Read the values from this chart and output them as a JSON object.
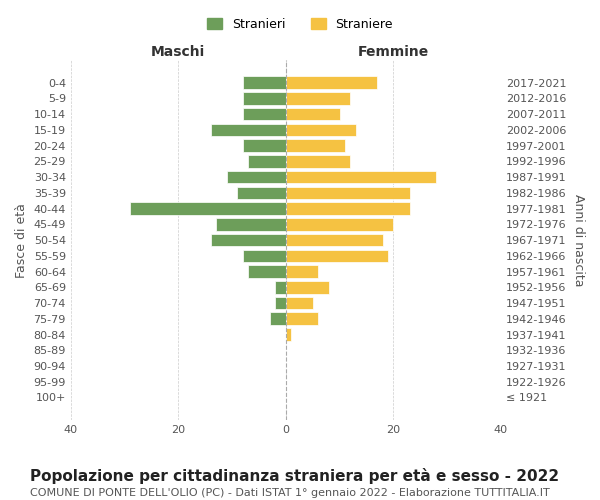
{
  "age_groups": [
    "100+",
    "95-99",
    "90-94",
    "85-89",
    "80-84",
    "75-79",
    "70-74",
    "65-69",
    "60-64",
    "55-59",
    "50-54",
    "45-49",
    "40-44",
    "35-39",
    "30-34",
    "25-29",
    "20-24",
    "15-19",
    "10-14",
    "5-9",
    "0-4"
  ],
  "birth_years": [
    "≤ 1921",
    "1922-1926",
    "1927-1931",
    "1932-1936",
    "1937-1941",
    "1942-1946",
    "1947-1951",
    "1952-1956",
    "1957-1961",
    "1962-1966",
    "1967-1971",
    "1972-1976",
    "1977-1981",
    "1982-1986",
    "1987-1991",
    "1992-1996",
    "1997-2001",
    "2002-2006",
    "2007-2011",
    "2012-2016",
    "2017-2021"
  ],
  "maschi": [
    0,
    0,
    0,
    0,
    0,
    3,
    2,
    2,
    7,
    8,
    14,
    13,
    29,
    9,
    11,
    7,
    8,
    14,
    8,
    8,
    8
  ],
  "femmine": [
    0,
    0,
    0,
    0,
    1,
    6,
    5,
    8,
    6,
    19,
    18,
    20,
    23,
    23,
    28,
    12,
    11,
    13,
    10,
    12,
    17
  ],
  "maschi_color": "#6d9e5a",
  "femmine_color": "#f5c242",
  "background_color": "#ffffff",
  "grid_color": "#cccccc",
  "xlim": [
    -40,
    40
  ],
  "title": "Popolazione per cittadinanza straniera per età e sesso - 2022",
  "subtitle": "COMUNE DI PONTE DELL'OLIO (PC) - Dati ISTAT 1° gennaio 2022 - Elaborazione TUTTITALIA.IT",
  "xlabel_left": "Maschi",
  "xlabel_right": "Femmine",
  "ylabel_left": "Fasce di età",
  "ylabel_right": "Anni di nascita",
  "legend_stranieri": "Stranieri",
  "legend_straniere": "Straniere",
  "xticks": [
    -40,
    -20,
    0,
    20,
    40
  ],
  "xtick_labels": [
    "40",
    "20",
    "0",
    "20",
    "40"
  ],
  "title_fontsize": 11,
  "subtitle_fontsize": 8,
  "axis_label_fontsize": 9,
  "tick_fontsize": 8,
  "bar_height": 0.8
}
